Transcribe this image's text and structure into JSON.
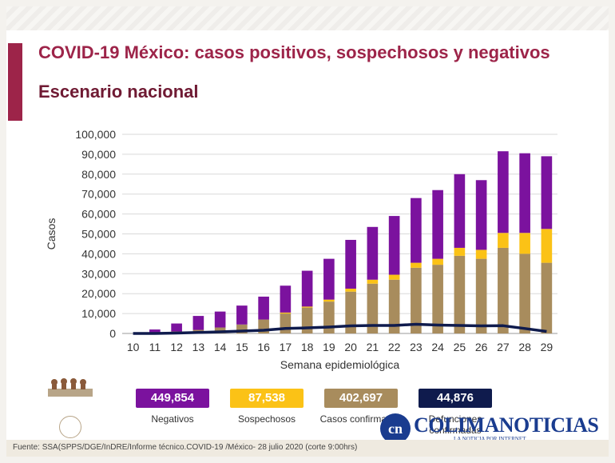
{
  "header": {
    "title": "COVID-19 México: casos positivos, sospechosos y negativos",
    "subtitle": "Escenario nacional"
  },
  "colors": {
    "negativos": "#7b129e",
    "sospechosos": "#fbc216",
    "confirmados": "#a88c5d",
    "defunciones": "#0f1b4d",
    "accent": "#9d2449"
  },
  "chart_data": {
    "type": "bar",
    "stacked": true,
    "xlabel": "Semana epidemiológica",
    "ylabel": "Casos",
    "ylim": [
      0,
      100000
    ],
    "yticks": [
      "0",
      "10,000",
      "20,000",
      "30,000",
      "40,000",
      "50,000",
      "60,000",
      "70,000",
      "80,000",
      "90,000",
      "100,000"
    ],
    "categories": [
      "10",
      "11",
      "12",
      "13",
      "14",
      "15",
      "16",
      "17",
      "18",
      "19",
      "20",
      "21",
      "22",
      "23",
      "24",
      "25",
      "26",
      "27",
      "28",
      "29"
    ],
    "series": [
      {
        "name": "Casos confirmados",
        "values": [
          0,
          500,
          1000,
          1800,
          3000,
          4500,
          7000,
          10000,
          13000,
          16000,
          21000,
          25000,
          27000,
          33000,
          34500,
          39000,
          37500,
          43000,
          40000,
          35500
        ]
      },
      {
        "name": "Sospechosos",
        "values": [
          0,
          0,
          0,
          0,
          0,
          0,
          0,
          500,
          500,
          1000,
          1500,
          2000,
          2500,
          2500,
          3000,
          4000,
          4500,
          7500,
          10500,
          17000
        ]
      },
      {
        "name": "Negativos",
        "values": [
          0,
          1500,
          4000,
          7000,
          8000,
          9500,
          11500,
          13500,
          18000,
          20500,
          24500,
          26500,
          29500,
          32500,
          34500,
          37000,
          35000,
          41000,
          40000,
          36500
        ]
      },
      {
        "name": "Defunciones confirmadas",
        "type": "line",
        "values": [
          0,
          0,
          200,
          500,
          800,
          1200,
          1600,
          2500,
          2800,
          3200,
          3800,
          4000,
          4000,
          4600,
          4200,
          4000,
          3800,
          3900,
          2500,
          1000
        ]
      }
    ]
  },
  "legend": [
    {
      "value": "449,854",
      "label": "Negativos"
    },
    {
      "value": "87,538",
      "label": "Sospechosos"
    },
    {
      "value": "402,697",
      "label": "Casos confirmados"
    },
    {
      "value": "44,876",
      "label": "Defunciones confirmadas"
    }
  ],
  "watermark": {
    "monogram": "cn",
    "text": "COLIMANOTICIAS",
    "tagline": "LA NOTICIA POR INTERNET"
  },
  "footer": "Fuente: SSA(SPPS/DGE/InDRE/Informe técnico.COVID-19 /México- 28 julio 2020 (corte 9:00hrs)"
}
